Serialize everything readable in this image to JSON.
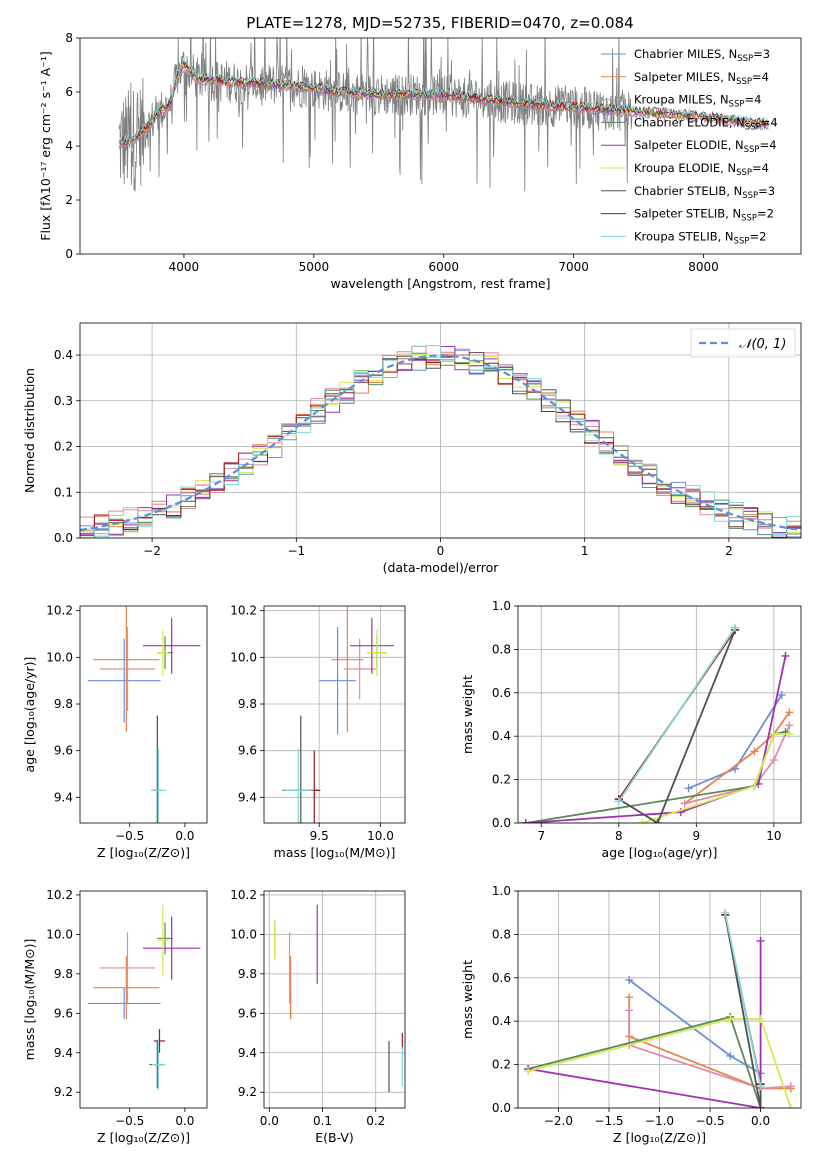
{
  "figure": {
    "title": "PLATE=1278, MJD=52735, FIBERID=0470, z=0.084"
  },
  "colors": {
    "Chabrier MILES": "#6a8fd8",
    "Salpeter MILES": "#e8844a",
    "Kroupa MILES": "#e48aa6",
    "Chabrier ELODIE": "#5a8a5a",
    "Salpeter ELODIE": "#a030b0",
    "Kroupa ELODIE": "#d6ea50",
    "Chabrier STELIB": "#505050",
    "Salpeter STELIB": "#a01818",
    "Kroupa STELIB": "#80d8d8",
    "data": "#7f7f7f",
    "normal": "#5b8fd6"
  },
  "chart_data": [
    {
      "id": "spectrum",
      "type": "line",
      "title": "PLATE=1278, MJD=52735, FIBERID=0470, z=0.084",
      "xlabel": "wavelength [Angstrom, rest frame]",
      "ylabel": "Flux [fλ10⁻¹⁷ erg cm⁻² s⁻¹ A⁻¹]",
      "xlim": [
        3200,
        8750
      ],
      "ylim": [
        0,
        8
      ],
      "xticks": [
        4000,
        5000,
        6000,
        7000,
        8000
      ],
      "yticks": [
        0,
        2,
        4,
        6,
        8
      ],
      "legend_position": "top-right",
      "legend": [
        {
          "key": "Chabrier MILES",
          "label": "Chabrier MILES, N",
          "sub": "SSP",
          "suffix": "=3"
        },
        {
          "key": "Salpeter MILES",
          "label": "Salpeter MILES, N",
          "sub": "SSP",
          "suffix": "=4"
        },
        {
          "key": "Kroupa MILES",
          "label": "Kroupa MILES, N",
          "sub": "SSP",
          "suffix": "=4"
        },
        {
          "key": "Chabrier ELODIE",
          "label": "Chabrier ELODIE, N",
          "sub": "SSP",
          "suffix": "=4"
        },
        {
          "key": "Salpeter ELODIE",
          "label": "Salpeter ELODIE, N",
          "sub": "SSP",
          "suffix": "=4"
        },
        {
          "key": "Kroupa ELODIE",
          "label": "Kroupa ELODIE, N",
          "sub": "SSP",
          "suffix": "=4"
        },
        {
          "key": "Chabrier STELIB",
          "label": "Chabrier STELIB, N",
          "sub": "SSP",
          "suffix": "=3"
        },
        {
          "key": "Salpeter STELIB",
          "label": "Salpeter STELIB, N",
          "sub": "SSP",
          "suffix": "=2"
        },
        {
          "key": "Kroupa STELIB",
          "label": "Kroupa STELIB, N",
          "sub": "SSP",
          "suffix": "=2"
        }
      ],
      "continuum": [
        [
          3500,
          4.1
        ],
        [
          3600,
          4.2
        ],
        [
          3700,
          4.6
        ],
        [
          3800,
          5.2
        ],
        [
          3900,
          5.6
        ],
        [
          3950,
          6.6
        ],
        [
          4000,
          7.0
        ],
        [
          4100,
          6.5
        ],
        [
          4300,
          6.4
        ],
        [
          4600,
          6.3
        ],
        [
          4900,
          6.2
        ],
        [
          5200,
          6.0
        ],
        [
          5500,
          5.9
        ],
        [
          5900,
          5.9
        ],
        [
          6200,
          5.8
        ],
        [
          6500,
          5.6
        ],
        [
          6800,
          5.5
        ],
        [
          7100,
          5.4
        ],
        [
          7400,
          5.3
        ],
        [
          7700,
          5.2
        ],
        [
          8000,
          5.1
        ],
        [
          8300,
          4.9
        ],
        [
          8500,
          4.8
        ]
      ],
      "data_range": [
        3500,
        7450
      ],
      "model_range": [
        3500,
        8500
      ]
    },
    {
      "id": "residuals",
      "type": "histogram",
      "xlabel": "(data-model)/error",
      "ylabel": "Normed distribution",
      "xlim": [
        -2.5,
        2.5
      ],
      "ylim": [
        0,
        0.47
      ],
      "xticks": [
        -2,
        -1,
        0,
        1,
        2
      ],
      "xticklabels": [
        "−2",
        "−1",
        "0",
        "1",
        "2"
      ],
      "yticks": [
        0.0,
        0.1,
        0.2,
        0.3,
        0.4
      ],
      "yticklabels": [
        "0.0",
        "0.1",
        "0.2",
        "0.3",
        "0.4"
      ],
      "grid": true,
      "legend_position": "top-right",
      "legend_label": "𝒩(0, 1)",
      "bin_width": 0.1
    },
    {
      "id": "age-vs-Z",
      "type": "errorbar",
      "xlabel": "Z [log₁₀(Z/Z⊙)]",
      "ylabel": "age  [log₁₀(age/yr)]",
      "xlim": [
        -0.95,
        0.2
      ],
      "ylim": [
        9.29,
        10.22
      ],
      "xticks": [
        -0.5,
        0.0
      ],
      "xticklabels": [
        "−0.5",
        "0.0"
      ],
      "yticks": [
        9.4,
        9.6,
        9.8,
        10.0,
        10.2
      ],
      "yticklabels": [
        "9.4",
        "9.6",
        "9.8",
        "10.0",
        "10.2"
      ],
      "grid": false,
      "points": [
        {
          "key": "Chabrier MILES",
          "x": -0.55,
          "y": 9.9,
          "xerr": 0.33,
          "yerr": 0.18
        },
        {
          "key": "Salpeter MILES",
          "x": -0.53,
          "y": 9.99,
          "xerr": 0.3,
          "yerr": 0.31
        },
        {
          "key": "Kroupa MILES",
          "x": -0.52,
          "y": 9.95,
          "xerr": 0.25,
          "yerr": 0.18
        },
        {
          "key": "Chabrier ELODIE",
          "x": -0.18,
          "y": 10.02,
          "xerr": 0.07,
          "yerr": 0.07
        },
        {
          "key": "Salpeter ELODIE",
          "x": -0.12,
          "y": 10.05,
          "xerr": 0.26,
          "yerr": 0.12
        },
        {
          "key": "Kroupa ELODIE",
          "x": -0.2,
          "y": 10.02,
          "xerr": 0.05,
          "yerr": 0.1
        },
        {
          "key": "Chabrier STELIB",
          "x": -0.25,
          "y": 9.43,
          "xerr": 0.04,
          "yerr": 0.32
        },
        {
          "key": "Salpeter STELIB",
          "x": -0.27,
          "y": 9.43,
          "xerr": 0.02,
          "yerr": 0.0
        },
        {
          "key": "Kroupa STELIB",
          "x": -0.24,
          "y": 9.43,
          "xerr": 0.07,
          "yerr": 0.18
        }
      ]
    },
    {
      "id": "age-vs-mass",
      "type": "errorbar",
      "xlabel": "mass [log₁₀(M/M⊙)]",
      "ylabel": "",
      "xlim": [
        9.05,
        10.2
      ],
      "ylim": [
        9.29,
        10.22
      ],
      "xticks": [
        9.5,
        10.0
      ],
      "xticklabels": [
        "9.5",
        "10.0"
      ],
      "yticks": [
        9.4,
        9.6,
        9.8,
        10.0,
        10.2
      ],
      "yticklabels": [
        "9.4",
        "9.6",
        "9.8",
        "10.0",
        "10.2"
      ],
      "grid": true,
      "points": [
        {
          "key": "Chabrier MILES",
          "x": 9.65,
          "y": 9.9,
          "xerr": 0.15,
          "yerr": 0.23
        },
        {
          "key": "Salpeter MILES",
          "x": 9.73,
          "y": 9.99,
          "xerr": 0.13,
          "yerr": 0.31
        },
        {
          "key": "Kroupa MILES",
          "x": 9.83,
          "y": 9.95,
          "xerr": 0.13,
          "yerr": 0.13
        },
        {
          "key": "Chabrier ELODIE",
          "x": 9.97,
          "y": 10.02,
          "xerr": 0.08,
          "yerr": 0.07
        },
        {
          "key": "Salpeter ELODIE",
          "x": 9.93,
          "y": 10.05,
          "xerr": 0.18,
          "yerr": 0.12
        },
        {
          "key": "Kroupa ELODIE",
          "x": 9.97,
          "y": 10.02,
          "xerr": 0.08,
          "yerr": 0.1
        },
        {
          "key": "Chabrier STELIB",
          "x": 9.35,
          "y": 9.43,
          "xerr": 0.15,
          "yerr": 0.32
        },
        {
          "key": "Salpeter STELIB",
          "x": 9.46,
          "y": 9.43,
          "xerr": 0.05,
          "yerr": 0.17
        },
        {
          "key": "Kroupa STELIB",
          "x": 9.33,
          "y": 9.43,
          "xerr": 0.12,
          "yerr": 0.18
        }
      ]
    },
    {
      "id": "weight-vs-age",
      "type": "line",
      "xlabel": "age  [log₁₀(age/yr)]",
      "ylabel": "mass weight",
      "xlim": [
        6.7,
        10.35
      ],
      "ylim": [
        0,
        1.0
      ],
      "xticks": [
        7,
        8,
        9,
        10
      ],
      "xticklabels": [
        "7",
        "8",
        "9",
        "10"
      ],
      "yticks": [
        0.0,
        0.2,
        0.4,
        0.6,
        0.8,
        1.0
      ],
      "yticklabels": [
        "0.0",
        "0.2",
        "0.4",
        "0.6",
        "0.8",
        "1.0"
      ],
      "grid": true,
      "series": [
        {
          "key": "Chabrier MILES",
          "x": [
            8.9,
            9.5,
            10.1
          ],
          "y": [
            0.16,
            0.25,
            0.59
          ]
        },
        {
          "key": "Salpeter MILES",
          "x": [
            8.85,
            9.75,
            10.0,
            10.2
          ],
          "y": [
            0.09,
            0.33,
            0.41,
            0.51
          ]
        },
        {
          "key": "Kroupa MILES",
          "x": [
            8.85,
            9.75,
            10.0,
            10.2
          ],
          "y": [
            0.09,
            0.17,
            0.29,
            0.45
          ]
        },
        {
          "key": "Chabrier ELODIE",
          "x": [
            6.8,
            9.75,
            10.0,
            10.15
          ],
          "y": [
            0.0,
            0.17,
            0.41,
            0.42
          ]
        },
        {
          "key": "Salpeter ELODIE",
          "x": [
            6.8,
            8.8,
            9.8,
            10.15
          ],
          "y": [
            0.0,
            0.05,
            0.18,
            0.77
          ]
        },
        {
          "key": "Kroupa ELODIE",
          "x": [
            8.3,
            9.75,
            10.0,
            10.2
          ],
          "y": [
            0.0,
            0.17,
            0.41,
            0.41
          ]
        },
        {
          "key": "Chabrier STELIB",
          "x": [
            8.0,
            8.5,
            9.5
          ],
          "y": [
            0.11,
            0.0,
            0.89
          ]
        },
        {
          "key": "Salpeter STELIB",
          "x": [
            8.0,
            9.5
          ],
          "y": [
            0.11,
            0.89
          ]
        },
        {
          "key": "Kroupa STELIB",
          "x": [
            8.0,
            9.5
          ],
          "y": [
            0.1,
            0.9
          ]
        }
      ]
    },
    {
      "id": "mass-vs-Z",
      "type": "errorbar",
      "xlabel": "Z [log₁₀(Z/Z⊙)]",
      "ylabel": "mass [log₁₀(M/M⊙)]",
      "xlim": [
        -0.95,
        0.2
      ],
      "ylim": [
        9.12,
        10.22
      ],
      "xticks": [
        -0.5,
        0.0
      ],
      "xticklabels": [
        "−0.5",
        "0.0"
      ],
      "yticks": [
        9.2,
        9.4,
        9.6,
        9.8,
        10.0,
        10.2
      ],
      "yticklabels": [
        "9.2",
        "9.4",
        "9.6",
        "9.8",
        "10.0",
        "10.2"
      ],
      "grid": false,
      "points": [
        {
          "key": "Chabrier MILES",
          "x": -0.55,
          "y": 9.65,
          "xerr": 0.33,
          "yerr": 0.08
        },
        {
          "key": "Salpeter MILES",
          "x": -0.53,
          "y": 9.73,
          "xerr": 0.3,
          "yerr": 0.16
        },
        {
          "key": "Kroupa MILES",
          "x": -0.52,
          "y": 9.83,
          "xerr": 0.25,
          "yerr": 0.18
        },
        {
          "key": "Chabrier ELODIE",
          "x": -0.18,
          "y": 9.98,
          "xerr": 0.07,
          "yerr": 0.08
        },
        {
          "key": "Salpeter ELODIE",
          "x": -0.12,
          "y": 9.93,
          "xerr": 0.26,
          "yerr": 0.16
        },
        {
          "key": "Kroupa ELODIE",
          "x": -0.2,
          "y": 9.97,
          "xerr": 0.05,
          "yerr": 0.18
        },
        {
          "key": "Chabrier STELIB",
          "x": -0.25,
          "y": 9.34,
          "xerr": 0.07,
          "yerr": 0.12
        },
        {
          "key": "Salpeter STELIB",
          "x": -0.23,
          "y": 9.46,
          "xerr": 0.05,
          "yerr": 0.06
        },
        {
          "key": "Kroupa STELIB",
          "x": -0.24,
          "y": 9.34,
          "xerr": 0.06,
          "yerr": 0.13
        }
      ]
    },
    {
      "id": "mass-vs-ebv",
      "type": "errorbar",
      "xlabel": "E(B-V)",
      "ylabel": "",
      "xlim": [
        -0.01,
        0.255
      ],
      "ylim": [
        9.12,
        10.22
      ],
      "xticks": [
        0.0,
        0.1,
        0.2
      ],
      "xticklabels": [
        "0.0",
        "0.1",
        "0.2"
      ],
      "yticks": [
        9.2,
        9.4,
        9.6,
        9.8,
        10.0,
        10.2
      ],
      "yticklabels": [
        "9.2",
        "9.4",
        "9.6",
        "9.8",
        "10.0",
        "10.2"
      ],
      "grid": true,
      "points": [
        {
          "key": "Chabrier MILES",
          "x": 0.04,
          "y": 9.65,
          "xerr": 0,
          "yerr": 0.08
        },
        {
          "key": "Salpeter MILES",
          "x": 0.04,
          "y": 9.73,
          "xerr": 0,
          "yerr": 0.16
        },
        {
          "key": "Kroupa MILES",
          "x": 0.038,
          "y": 9.83,
          "xerr": 0,
          "yerr": 0.18
        },
        {
          "key": "Chabrier ELODIE",
          "x": 0.01,
          "y": 9.98,
          "xerr": 0,
          "yerr": 0.09
        },
        {
          "key": "Salpeter ELODIE",
          "x": 0.09,
          "y": 9.95,
          "xerr": 0,
          "yerr": 0.2
        },
        {
          "key": "Kroupa ELODIE",
          "x": 0.01,
          "y": 9.97,
          "xerr": 0,
          "yerr": 0.1
        },
        {
          "key": "Chabrier STELIB",
          "x": 0.225,
          "y": 9.33,
          "xerr": 0,
          "yerr": 0.13
        },
        {
          "key": "Salpeter STELIB",
          "x": 0.25,
          "y": 9.46,
          "xerr": 0,
          "yerr": 0.04
        },
        {
          "key": "Kroupa STELIB",
          "x": 0.25,
          "y": 9.33,
          "xerr": 0,
          "yerr": 0.1
        }
      ]
    },
    {
      "id": "weight-vs-Z",
      "type": "line",
      "xlabel": "Z [log₁₀(Z/Z⊙)]",
      "ylabel": "mass weight",
      "xlim": [
        -2.4,
        0.4
      ],
      "ylim": [
        0,
        1.0
      ],
      "xticks": [
        -2.0,
        -1.5,
        -1.0,
        -0.5,
        0.0
      ],
      "xticklabels": [
        "−2.0",
        "−1.5",
        "−1.0",
        "−0.5",
        "0.0"
      ],
      "yticks": [
        0.0,
        0.2,
        0.4,
        0.6,
        0.8,
        1.0
      ],
      "yticklabels": [
        "0.0",
        "0.2",
        "0.4",
        "0.6",
        "0.8",
        "1.0"
      ],
      "grid": true,
      "series": [
        {
          "key": "Chabrier MILES",
          "x": [
            -1.3,
            -0.3,
            0.0
          ],
          "y": [
            0.59,
            0.24,
            0.16
          ]
        },
        {
          "key": "Salpeter MILES",
          "x": [
            -1.3,
            -1.3,
            0.0,
            0.3
          ],
          "y": [
            0.51,
            0.33,
            0.09,
            0.09
          ]
        },
        {
          "key": "Kroupa MILES",
          "x": [
            -1.3,
            -1.3,
            0.0,
            0.3
          ],
          "y": [
            0.45,
            0.29,
            0.09,
            0.1
          ]
        },
        {
          "key": "Chabrier ELODIE",
          "x": [
            -2.3,
            -0.3,
            0.0
          ],
          "y": [
            0.18,
            0.42,
            0.0
          ]
        },
        {
          "key": "Salpeter ELODIE",
          "x": [
            -2.3,
            0.0,
            0.0
          ],
          "y": [
            0.18,
            0.0,
            0.77
          ]
        },
        {
          "key": "Kroupa ELODIE",
          "x": [
            -2.3,
            -0.3,
            0.0,
            0.3
          ],
          "y": [
            0.17,
            0.41,
            0.41,
            0.0
          ]
        },
        {
          "key": "Chabrier STELIB",
          "x": [
            -0.35,
            0.0,
            0.0
          ],
          "y": [
            0.89,
            0.0,
            0.11
          ]
        },
        {
          "key": "Salpeter STELIB",
          "x": [
            -0.35,
            0.0
          ],
          "y": [
            0.89,
            0.11
          ]
        },
        {
          "key": "Kroupa STELIB",
          "x": [
            -0.35,
            0.0
          ],
          "y": [
            0.9,
            0.1
          ]
        }
      ]
    }
  ]
}
